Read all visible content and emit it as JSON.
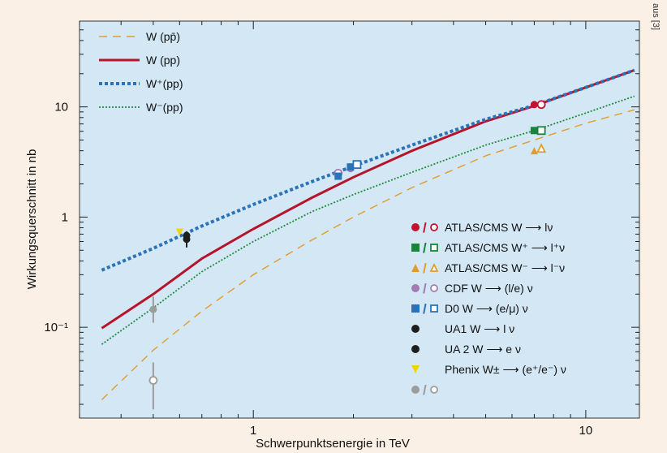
{
  "source_note": "aus [3]",
  "chart_data": {
    "type": "line",
    "xlabel": "Schwerpunktsenergie in TeV",
    "ylabel": "Wirkungsquerschnitt in nb",
    "xscale": "log",
    "yscale": "log",
    "xlim": [
      0.3,
      14.5
    ],
    "ylim": [
      0.015,
      60
    ],
    "x_ticks": [
      {
        "value": 1,
        "label": "1"
      },
      {
        "value": 10,
        "label": "10"
      }
    ],
    "y_ticks": [
      {
        "value": 0.1,
        "label": "10⁻¹"
      },
      {
        "value": 1,
        "label": "1"
      },
      {
        "value": 10,
        "label": "10"
      }
    ],
    "grid": false,
    "background": "#d3e7f5",
    "legend_lines_position": "top-left",
    "legend_markers_position": "right",
    "series": [
      {
        "name": "W (pp̄)",
        "style": "dashed",
        "color": "#e39b2c",
        "x": [
          0.35,
          0.5,
          0.7,
          1.0,
          1.5,
          2.0,
          3.0,
          5.0,
          7.0,
          10.0,
          14.0
        ],
        "y": [
          0.022,
          0.062,
          0.14,
          0.3,
          0.62,
          1.0,
          1.85,
          3.6,
          5.0,
          7.1,
          9.4
        ]
      },
      {
        "name": "W (pp)",
        "style": "solid",
        "color": "#b5142a",
        "x": [
          0.35,
          0.5,
          0.7,
          1.0,
          1.5,
          2.0,
          3.0,
          5.0,
          7.0,
          10.0,
          14.0
        ],
        "y": [
          0.098,
          0.2,
          0.42,
          0.78,
          1.5,
          2.3,
          4.0,
          7.4,
          10.2,
          15.0,
          21.5
        ]
      },
      {
        "name": "W⁺(pp)",
        "style": "dotted-thick",
        "color": "#2b73b8",
        "x": [
          0.35,
          0.5,
          0.7,
          1.0,
          1.5,
          2.0,
          3.0,
          5.0,
          7.0,
          10.0,
          14.0
        ],
        "y": [
          0.33,
          0.52,
          0.83,
          1.3,
          2.1,
          2.9,
          4.5,
          7.7,
          10.3,
          15.0,
          21.5
        ]
      },
      {
        "name": "W⁻(pp)",
        "style": "dotted",
        "color": "#1f8c3c",
        "x": [
          0.35,
          0.5,
          0.7,
          1.0,
          1.5,
          2.0,
          3.0,
          5.0,
          7.0,
          10.0,
          14.0
        ],
        "y": [
          0.07,
          0.15,
          0.32,
          0.6,
          1.12,
          1.6,
          2.55,
          4.5,
          6.1,
          8.8,
          12.5
        ]
      }
    ],
    "measurements": [
      {
        "name": "ATLAS/CMS W ⟶ lν",
        "color": "#c3122f",
        "filled_shape": "circle",
        "open_shape": "circle",
        "points": [
          {
            "x": 7.0,
            "y": 10.5,
            "open": false
          },
          {
            "x": 7.35,
            "y": 10.5,
            "open": true
          }
        ]
      },
      {
        "name": "ATLAS/CMS W⁺ ⟶ l⁺ν",
        "color": "#17853b",
        "filled_shape": "square",
        "open_shape": "square",
        "points": [
          {
            "x": 7.0,
            "y": 6.1,
            "open": false
          },
          {
            "x": 7.35,
            "y": 6.1,
            "open": true
          }
        ]
      },
      {
        "name": "ATLAS/CMS W⁻ ⟶ l⁻ν",
        "color": "#e39b2c",
        "filled_shape": "triangle",
        "open_shape": "triangle",
        "points": [
          {
            "x": 7.0,
            "y": 4.0,
            "open": false
          },
          {
            "x": 7.35,
            "y": 4.2,
            "open": true
          }
        ]
      },
      {
        "name": "CDF W ⟶ (l/e) ν",
        "color": "#a57bb3",
        "filled_shape": "circle",
        "open_shape": "circle",
        "points": [
          {
            "x": 1.96,
            "y": 2.75,
            "open": false
          },
          {
            "x": 1.8,
            "y": 2.5,
            "open": true
          }
        ]
      },
      {
        "name": "D0 W ⟶ (e/μ) ν",
        "color": "#2b73b8",
        "filled_shape": "square",
        "open_shape": "square",
        "points": [
          {
            "x": 1.8,
            "y": 2.35,
            "open": false
          },
          {
            "x": 1.96,
            "y": 2.85,
            "open": false
          },
          {
            "x": 2.05,
            "y": 3.0,
            "open": true
          }
        ]
      },
      {
        "name": "UA1 W ⟶ l ν",
        "color": "#1e1e1e",
        "filled_shape": "circle",
        "open_shape": "none",
        "points": [
          {
            "x": 0.63,
            "y": 0.63,
            "open": false,
            "err_lo": 0.53,
            "err_hi": 0.74
          }
        ]
      },
      {
        "name": "UA 2 W ⟶ e ν",
        "color": "#1e1e1e",
        "filled_shape": "circle",
        "open_shape": "none",
        "points": [
          {
            "x": 0.63,
            "y": 0.68,
            "open": false
          }
        ]
      },
      {
        "name": "Phenix W± ⟶ (e⁺/e⁻) ν",
        "color": "#f2d400",
        "filled_shape": "triangle-down",
        "open_shape": "none",
        "points": [
          {
            "x": 0.6,
            "y": 0.73,
            "open": false
          }
        ]
      },
      {
        "name": "",
        "color": "#9c9c9c",
        "filled_shape": "circle",
        "open_shape": "circle",
        "points": [
          {
            "x": 0.5,
            "y": 0.145,
            "open": false,
            "err_lo": 0.11,
            "err_hi": 0.19
          },
          {
            "x": 0.5,
            "y": 0.033,
            "open": true,
            "err_lo": 0.018,
            "err_hi": 0.048
          }
        ]
      }
    ]
  }
}
